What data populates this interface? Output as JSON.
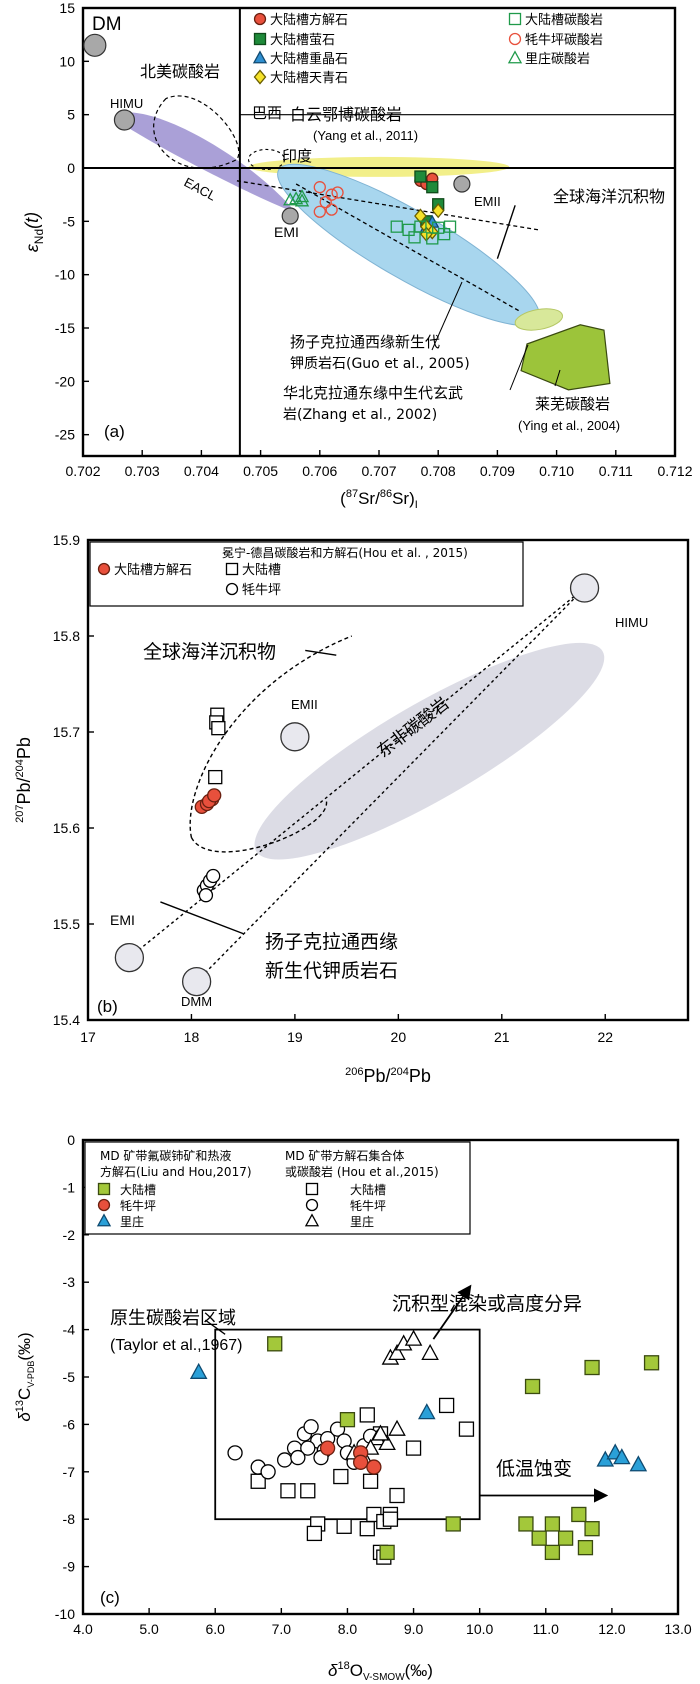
{
  "chart_data": [
    {
      "panel": "(a)",
      "type": "scatter",
      "x_axis": {
        "range": [
          0.702,
          0.712
        ],
        "ticks": [
          "0.702",
          "0.703",
          "0.704",
          "0.705",
          "0.706",
          "0.707",
          "0.708",
          "0.709",
          "0.710",
          "0.711",
          "0.712"
        ],
        "label_parts": [
          "(",
          "87",
          "Sr/",
          "86",
          "Sr)",
          "I"
        ]
      },
      "y_axis": {
        "range": [
          -27,
          15
        ],
        "ticks": [
          "15",
          "10",
          "5",
          "0",
          "-5",
          "-10",
          "-15",
          "-20",
          "-25"
        ],
        "label_parts": [
          "ε",
          "Nd",
          "(t)"
        ]
      },
      "legend": [
        {
          "label": "大陆槽方解石",
          "marker": "circle",
          "fill": "#e8503c",
          "stroke": "#6a2010"
        },
        {
          "label": "大陆槽萤石",
          "marker": "square",
          "fill": "#1f8a3a",
          "stroke": "#0f4a1a"
        },
        {
          "label": "大陆槽重晶石",
          "marker": "triangle",
          "fill": "#2f8fd0",
          "stroke": "#124a70"
        },
        {
          "label": "大陆槽天青石",
          "marker": "diamond",
          "fill": "#f5e22a",
          "stroke": "#6a5e00"
        },
        {
          "label": "大陆槽碳酸岩",
          "marker": "square-open",
          "fill": "none",
          "stroke": "#1f9a4a"
        },
        {
          "label": "牦牛坪碳酸岩",
          "marker": "circle-open",
          "fill": "none",
          "stroke": "#e8503c"
        },
        {
          "label": "里庄碳酸岩",
          "marker": "triangle-open",
          "fill": "none",
          "stroke": "#1f9a4a"
        }
      ],
      "end_members": [
        {
          "label": "DM",
          "x": 0.7022,
          "y": 11.5
        },
        {
          "label": "HIMU",
          "x": 0.7027,
          "y": 4.5
        },
        {
          "label": "EMI",
          "x": 0.7055,
          "y": -4.5
        },
        {
          "label": "EMII",
          "x": 0.7084,
          "y": -1.5
        }
      ],
      "annotations": [
        "北美碳酸岩",
        "巴西",
        "印度",
        "EACL",
        "白云鄂博碳酸岩",
        "(Yang et al., 2011)",
        "全球海洋沉积物",
        "扬子克拉通西缘新生代",
        "钾质岩石(Guo et al., 2005)",
        "华北克拉通东缘中生代玄武",
        "岩(Zhang et al., 2002)",
        "莱芜碳酸岩",
        "(Ying et al., 2004)",
        "(a)"
      ],
      "series": [
        {
          "name": "大陆槽方解石",
          "points": [
            [
              0.7077,
              -1.2
            ],
            [
              0.7078,
              -1.5
            ],
            [
              0.7079,
              -1.0
            ]
          ]
        },
        {
          "name": "大陆槽萤石",
          "points": [
            [
              0.7077,
              -0.8
            ],
            [
              0.7079,
              -1.8
            ],
            [
              0.708,
              -3.4
            ],
            [
              0.7078,
              -5.0
            ]
          ]
        },
        {
          "name": "大陆槽重晶石",
          "points": [
            [
              0.7078,
              -5.6
            ],
            [
              0.7079,
              -5.1
            ]
          ]
        },
        {
          "name": "大陆槽天青石",
          "points": [
            [
              0.7077,
              -4.5
            ],
            [
              0.7078,
              -5.5
            ],
            [
              0.7079,
              -6.0
            ],
            [
              0.7078,
              -6.2
            ],
            [
              0.708,
              -4.0
            ]
          ]
        },
        {
          "name": "大陆槽碳酸岩",
          "points": [
            [
              0.7073,
              -5.5
            ],
            [
              0.7075,
              -5.8
            ],
            [
              0.7077,
              -5.5
            ],
            [
              0.708,
              -5.6
            ],
            [
              0.7082,
              -5.5
            ],
            [
              0.7081,
              -6.2
            ],
            [
              0.7076,
              -6.5
            ],
            [
              0.7079,
              -6.6
            ]
          ]
        },
        {
          "name": "牦牛坪碳酸岩",
          "points": [
            [
              0.706,
              -1.8
            ],
            [
              0.7062,
              -2.5
            ],
            [
              0.7061,
              -3.2
            ],
            [
              0.706,
              -4.1
            ],
            [
              0.7062,
              -3.9
            ],
            [
              0.7063,
              -2.3
            ]
          ]
        },
        {
          "name": "里庄碳酸岩",
          "points": [
            [
              0.7055,
              -3.0
            ],
            [
              0.7056,
              -2.9
            ],
            [
              0.7057,
              -3.1
            ],
            [
              0.7057,
              -2.7
            ]
          ]
        }
      ]
    },
    {
      "panel": "(b)",
      "type": "scatter",
      "x_axis": {
        "range": [
          17,
          22.8
        ],
        "ticks": [
          "17",
          "18",
          "19",
          "20",
          "21",
          "22"
        ],
        "label_parts": [
          "206",
          "Pb/",
          "204",
          "Pb"
        ]
      },
      "y_axis": {
        "range": [
          15.4,
          15.9
        ],
        "ticks": [
          "15.9",
          "15.8",
          "15.7",
          "15.6",
          "15.5",
          "15.4"
        ],
        "label_parts": [
          "207",
          "Pb/",
          "204",
          "Pb"
        ]
      },
      "legend_title": "冕宁-德昌碳酸岩和方解石(Hou et al. , 2015)",
      "legend": [
        {
          "label": "大陆槽方解石",
          "marker": "circle",
          "fill": "#e8503c",
          "stroke": "#6a2010"
        },
        {
          "label": "大陆槽",
          "marker": "square-open",
          "fill": "none",
          "stroke": "#000"
        },
        {
          "label": "牦牛坪",
          "marker": "circle-open",
          "fill": "none",
          "stroke": "#000"
        }
      ],
      "end_members": [
        {
          "label": "HIMU",
          "x": 21.8,
          "y": 15.85
        },
        {
          "label": "EMII",
          "x": 19.0,
          "y": 15.695
        },
        {
          "label": "EMI",
          "x": 17.4,
          "y": 15.465
        },
        {
          "label": "DMM",
          "x": 18.05,
          "y": 15.44
        }
      ],
      "annotations": [
        "全球海洋沉积物",
        "东非碳酸岩",
        "扬子克拉通西缘",
        "新生代钾质岩石",
        "(b)"
      ],
      "series": [
        {
          "name": "大陆槽方解石",
          "points": [
            [
              18.1,
              15.622
            ],
            [
              18.15,
              15.625
            ],
            [
              18.2,
              15.63
            ],
            [
              18.17,
              15.628
            ],
            [
              18.22,
              15.634
            ]
          ]
        },
        {
          "name": "大陆槽",
          "points": [
            [
              18.25,
              15.718
            ],
            [
              18.24,
              15.71
            ],
            [
              18.26,
              15.704
            ],
            [
              18.23,
              15.653
            ]
          ]
        },
        {
          "name": "牦牛坪",
          "points": [
            [
              18.12,
              15.535
            ],
            [
              18.15,
              15.54
            ],
            [
              18.18,
              15.545
            ],
            [
              18.21,
              15.55
            ],
            [
              18.14,
              15.53
            ]
          ]
        }
      ]
    },
    {
      "panel": "(c)",
      "type": "scatter",
      "x_axis": {
        "range": [
          4,
          13
        ],
        "ticks": [
          "4.0",
          "5.0",
          "6.0",
          "7.0",
          "8.0",
          "9.0",
          "10.0",
          "11.0",
          "12.0",
          "13.0"
        ],
        "label_parts": [
          "δ",
          "18",
          "O",
          "V-SMOW",
          "(‰)"
        ]
      },
      "y_axis": {
        "range": [
          -10,
          0
        ],
        "ticks": [
          "0",
          "-1",
          "-2",
          "-3",
          "-4",
          "-5",
          "-6",
          "-7",
          "-8",
          "-9",
          "-10"
        ],
        "label_parts": [
          "δ",
          "13",
          "C",
          "V-PDB",
          "(‰)"
        ]
      },
      "legend_left_title": [
        "MD 矿带氟碳铈矿和热液",
        "方解石(Liu and Hou,2017)"
      ],
      "legend_right_title": [
        "MD 矿带方解石集合体",
        "或碳酸岩 (Hou et al.,2015)"
      ],
      "legend_left": [
        {
          "label": "大陆槽",
          "marker": "square",
          "fill": "#a3c83a",
          "stroke": "#3a4a10"
        },
        {
          "label": "牦牛坪",
          "marker": "circle",
          "fill": "#e8503c",
          "stroke": "#6a2010"
        },
        {
          "label": "里庄",
          "marker": "triangle",
          "fill": "#2aa0d8",
          "stroke": "#0f4a70"
        }
      ],
      "legend_right": [
        {
          "label": "大陆槽",
          "marker": "square-open"
        },
        {
          "label": "牦牛坪",
          "marker": "circle-open"
        },
        {
          "label": "里庄",
          "marker": "triangle-open"
        }
      ],
      "annotations": [
        "原生碳酸岩区域",
        "(Taylor et al.,1967)",
        "沉积型混染或高度分异",
        "低温蚀变",
        "(c)"
      ],
      "series": [
        {
          "name": "大陆槽 (Liu and Hou,2017)",
          "marker": "square",
          "points": [
            [
              6.9,
              -4.3
            ],
            [
              8.0,
              -5.9
            ],
            [
              8.6,
              -8.7
            ],
            [
              9.6,
              -8.1
            ],
            [
              10.8,
              -5.2
            ],
            [
              11.7,
              -4.8
            ],
            [
              12.6,
              -4.7
            ],
            [
              10.7,
              -8.1
            ],
            [
              11.1,
              -8.1
            ],
            [
              10.9,
              -8.4
            ],
            [
              11.1,
              -8.7
            ],
            [
              11.5,
              -7.9
            ],
            [
              11.7,
              -8.2
            ],
            [
              11.6,
              -8.6
            ],
            [
              11.3,
              -8.4
            ]
          ]
        },
        {
          "name": "牦牛坪 (Liu and Hou,2017)",
          "marker": "circle",
          "points": [
            [
              7.7,
              -6.5
            ],
            [
              8.2,
              -6.6
            ],
            [
              8.2,
              -6.8
            ],
            [
              8.4,
              -6.9
            ]
          ]
        },
        {
          "name": "里庄 (Liu and Hou,2017)",
          "marker": "triangle",
          "points": [
            [
              5.75,
              -4.9
            ],
            [
              9.2,
              -5.75
            ],
            [
              11.9,
              -6.75
            ],
            [
              12.05,
              -6.6
            ],
            [
              12.15,
              -6.7
            ],
            [
              12.4,
              -6.85
            ]
          ]
        },
        {
          "name": "大陆槽 (Hou et al.,2015)",
          "marker": "square-open",
          "points": [
            [
              6.65,
              -7.2
            ],
            [
              7.1,
              -7.4
            ],
            [
              7.4,
              -7.4
            ],
            [
              7.55,
              -8.1
            ],
            [
              7.5,
              -8.3
            ],
            [
              7.95,
              -8.15
            ],
            [
              7.9,
              -7.1
            ],
            [
              8.3,
              -8.2
            ],
            [
              8.4,
              -7.9
            ],
            [
              8.55,
              -8.05
            ],
            [
              8.75,
              -7.5
            ],
            [
              8.65,
              -7.9
            ],
            [
              8.65,
              -8.0
            ],
            [
              8.3,
              -5.8
            ],
            [
              8.5,
              -6.2
            ],
            [
              9.0,
              -6.5
            ],
            [
              9.5,
              -5.6
            ],
            [
              9.8,
              -6.1
            ],
            [
              8.5,
              -8.7
            ],
            [
              8.55,
              -8.8
            ],
            [
              8.35,
              -7.2
            ]
          ]
        },
        {
          "name": "牦牛坪 (Hou et al.,2015)",
          "marker": "circle-open",
          "points": [
            [
              6.3,
              -6.6
            ],
            [
              6.65,
              -6.9
            ],
            [
              6.8,
              -7.0
            ],
            [
              7.05,
              -6.75
            ],
            [
              7.2,
              -6.5
            ],
            [
              7.35,
              -6.2
            ],
            [
              7.45,
              -6.05
            ],
            [
              7.55,
              -6.35
            ],
            [
              7.65,
              -6.55
            ],
            [
              7.7,
              -6.3
            ],
            [
              7.85,
              -6.1
            ],
            [
              7.95,
              -6.35
            ],
            [
              8.0,
              -6.6
            ],
            [
              8.1,
              -6.8
            ],
            [
              7.4,
              -6.5
            ],
            [
              7.6,
              -6.7
            ],
            [
              8.25,
              -6.45
            ],
            [
              8.35,
              -6.25
            ],
            [
              7.25,
              -6.7
            ]
          ]
        },
        {
          "name": "里庄 (Hou et al.,2015)",
          "marker": "triangle-open",
          "points": [
            [
              8.65,
              -4.6
            ],
            [
              8.75,
              -4.5
            ],
            [
              8.85,
              -4.3
            ],
            [
              9.0,
              -4.2
            ],
            [
              9.25,
              -4.5
            ],
            [
              8.75,
              -6.1
            ],
            [
              8.45,
              -6.3
            ],
            [
              8.35,
              -6.5
            ],
            [
              8.1,
              -6.6
            ],
            [
              8.25,
              -6.7
            ],
            [
              8.6,
              -6.4
            ],
            [
              8.5,
              -6.2
            ]
          ]
        }
      ]
    }
  ],
  "colors": {
    "eacl": "#9b8fd0",
    "yellow_field": "#f2ef8a",
    "blue_field": "#a8d6ee",
    "light_green": "#d8e89a",
    "dark_green": "#9cc43a",
    "himu_field": "#d8d8e2",
    "endmember_gray": "#a8a8a8",
    "endmember_light": "#e8e8ee"
  }
}
